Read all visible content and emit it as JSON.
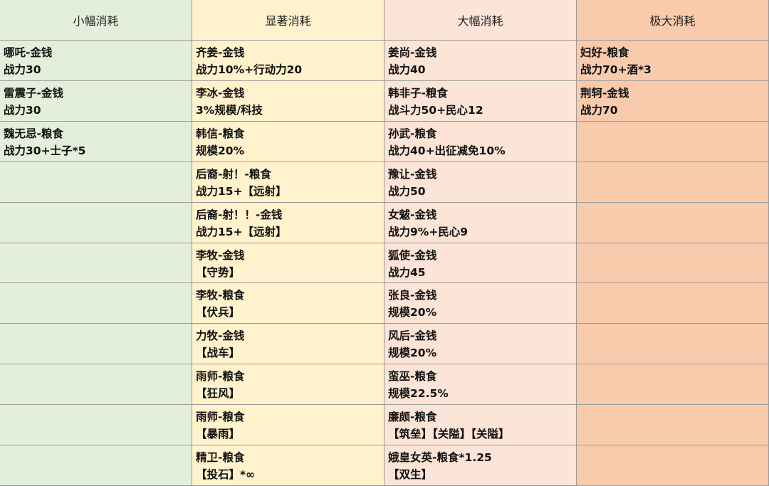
{
  "columns": [
    {
      "header": "小幅消耗",
      "items": [
        [
          "哪吒-金钱",
          "战力30"
        ],
        [
          "雷震子-金钱",
          "战力30"
        ],
        [
          "魏无忌-粮食",
          "战力30+士子*5"
        ]
      ]
    },
    {
      "header": "显著消耗",
      "items": [
        [
          "齐姜-金钱",
          "战力10%+行动力20"
        ],
        [
          "李冰-金钱",
          "3%规模/科技"
        ],
        [
          "韩信-粮食",
          "规模20%"
        ],
        [
          "后裔-射！-粮食",
          "战力15+【远射】"
        ],
        [
          "后裔-射！！-金钱",
          "战力15+【远射】"
        ],
        [
          "李牧-金钱",
          "【守势】"
        ],
        [
          "李牧-粮食",
          "【伏兵】"
        ],
        [
          "力牧-金钱",
          "【战车】"
        ],
        [
          "雨师-粮食",
          "【狂风】"
        ],
        [
          "雨师-粮食",
          "【暴雨】"
        ],
        [
          "精卫-粮食",
          "【投石】*∞"
        ]
      ]
    },
    {
      "header": "大幅消耗",
      "items": [
        [
          "姜尚-金钱",
          "战力40"
        ],
        [
          "韩非子-粮食",
          "战斗力50+民心12"
        ],
        [
          "孙武-粮食",
          "战力40+出征减免10%"
        ],
        [
          "豫让-金钱",
          "战力50"
        ],
        [
          "女魃-金钱",
          "战力9%+民心9"
        ],
        [
          "狐使-金钱",
          "战力45"
        ],
        [
          "张良-金钱",
          "规模20%"
        ],
        [
          "风后-金钱",
          "规模20%"
        ],
        [
          "蛮巫-粮食",
          "规模22.5%"
        ],
        [
          "廉颇-粮食",
          "【筑垒】【关隘】【关隘】"
        ],
        [
          "娥皇女英-粮食*1.25",
          "【双生】"
        ]
      ]
    },
    {
      "header": "极大消耗",
      "items": [
        [
          "妇好-粮食",
          "战力70+酒*3"
        ],
        [
          "荆轲-金钱",
          "战力70"
        ]
      ]
    }
  ]
}
